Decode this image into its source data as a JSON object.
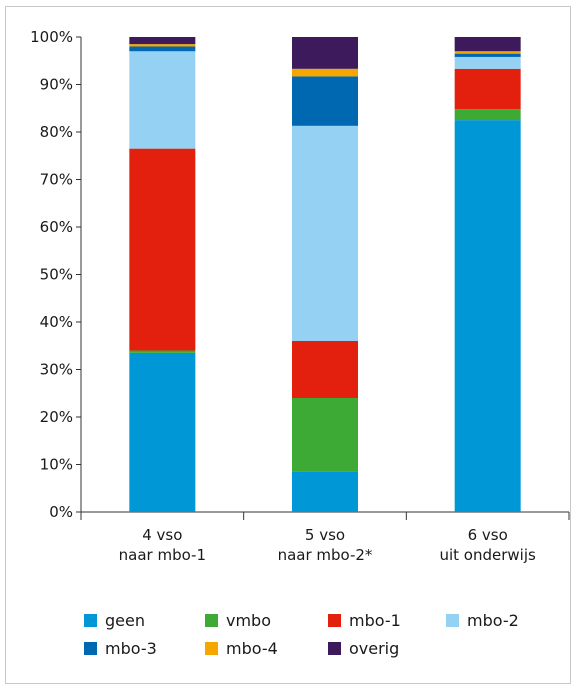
{
  "chart_data": {
    "type": "bar",
    "stacked": true,
    "categories": [
      [
        "4 vso",
        "naar mbo-1"
      ],
      [
        "5 vso",
        "naar mbo-2*"
      ],
      [
        "6 vso",
        "uit onderwijs"
      ]
    ],
    "ylim": [
      0,
      100
    ],
    "yticks": [
      "0%",
      "10%",
      "20%",
      "30%",
      "40%",
      "50%",
      "60%",
      "70%",
      "80%",
      "90%",
      "100%"
    ],
    "grid": false,
    "legend_position": "bottom",
    "series": [
      {
        "name": "geen",
        "color": "#0097d7",
        "values": [
          33.5,
          8.5,
          82.5
        ]
      },
      {
        "name": "vmbo",
        "color": "#3daa35",
        "values": [
          0.5,
          15.5,
          2.3
        ]
      },
      {
        "name": "mbo-1",
        "color": "#e3200e",
        "values": [
          42.5,
          12.0,
          8.5
        ]
      },
      {
        "name": "mbo-2",
        "color": "#94d1f2",
        "values": [
          20.5,
          45.3,
          2.5
        ]
      },
      {
        "name": "mbo-3",
        "color": "#0067b1",
        "values": [
          1.0,
          10.4,
          0.7
        ]
      },
      {
        "name": "mbo-4",
        "color": "#f5a700",
        "values": [
          0.5,
          1.6,
          0.5
        ]
      },
      {
        "name": "overig",
        "color": "#3d1a5c",
        "values": [
          1.5,
          6.7,
          3.0
        ]
      }
    ]
  }
}
